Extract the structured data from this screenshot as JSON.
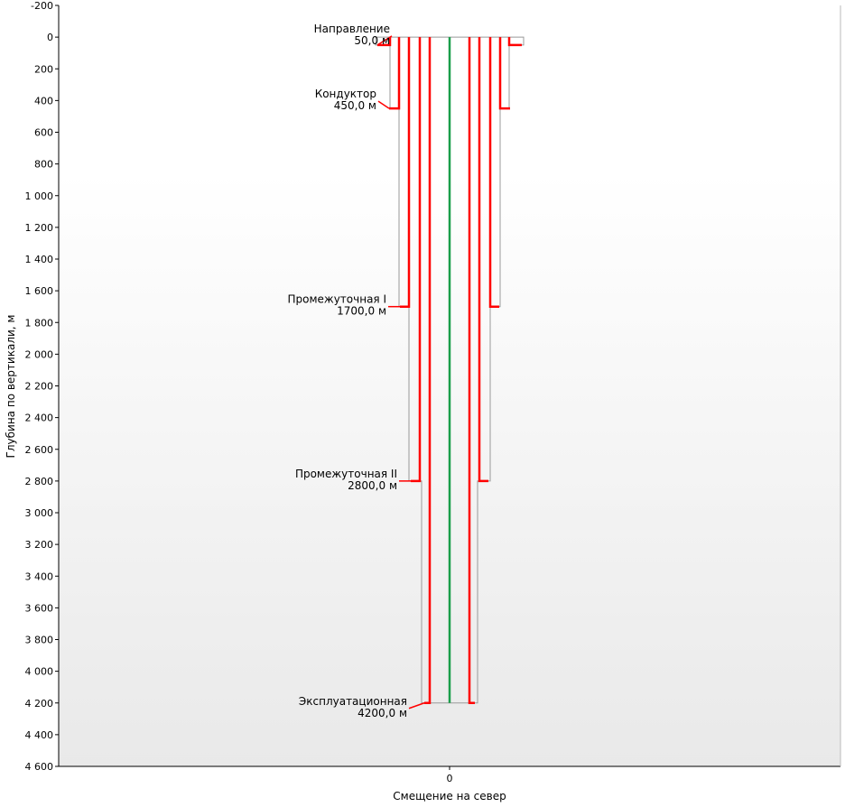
{
  "chart_data": {
    "type": "well-construction",
    "xlabel": "Смещение на север",
    "ylabel": "Глубина по вертикали, м",
    "ylim": [
      -200,
      4600
    ],
    "y_ticks": [
      {
        "value": -200,
        "label": "-200"
      },
      {
        "value": 0,
        "label": "0"
      },
      {
        "value": 200,
        "label": "200"
      },
      {
        "value": 400,
        "label": "400"
      },
      {
        "value": 600,
        "label": "600"
      },
      {
        "value": 800,
        "label": "800"
      },
      {
        "value": 1000,
        "label": "1 000"
      },
      {
        "value": 1200,
        "label": "1 200"
      },
      {
        "value": 1400,
        "label": "1 400"
      },
      {
        "value": 1600,
        "label": "1 600"
      },
      {
        "value": 1800,
        "label": "1 800"
      },
      {
        "value": 2000,
        "label": "2 000"
      },
      {
        "value": 2200,
        "label": "2 200"
      },
      {
        "value": 2400,
        "label": "2 400"
      },
      {
        "value": 2600,
        "label": "2 600"
      },
      {
        "value": 2800,
        "label": "2 800"
      },
      {
        "value": 3000,
        "label": "3 000"
      },
      {
        "value": 3200,
        "label": "3 200"
      },
      {
        "value": 3400,
        "label": "3 400"
      },
      {
        "value": 3600,
        "label": "3 600"
      },
      {
        "value": 3800,
        "label": "3 800"
      },
      {
        "value": 4000,
        "label": "4 000"
      },
      {
        "value": 4200,
        "label": "4 200"
      },
      {
        "value": 4400,
        "label": "4 400"
      },
      {
        "value": 4600,
        "label": "4 600"
      }
    ],
    "x_ticks": [
      {
        "value": 0,
        "label": "0"
      }
    ],
    "casings": [
      {
        "name": "Направление",
        "depth": 50,
        "depth_label": "50,0 м"
      },
      {
        "name": "Кондуктор",
        "depth": 450,
        "depth_label": "450,0 м"
      },
      {
        "name": "Промежуточная I",
        "depth": 1700,
        "depth_label": "1700,0 м"
      },
      {
        "name": "Промежуточная II",
        "depth": 2800,
        "depth_label": "2800,0 м"
      },
      {
        "name": "Эксплуатационная",
        "depth": 4200,
        "depth_label": "4200,0 м"
      }
    ],
    "grid": false,
    "colors": {
      "casing": "#ff0000",
      "borehole": "#999999",
      "axis": "#000000",
      "center_line": "#1a9e4a",
      "background_top": "#ffffff",
      "background_bottom": "#eaeaea"
    }
  }
}
